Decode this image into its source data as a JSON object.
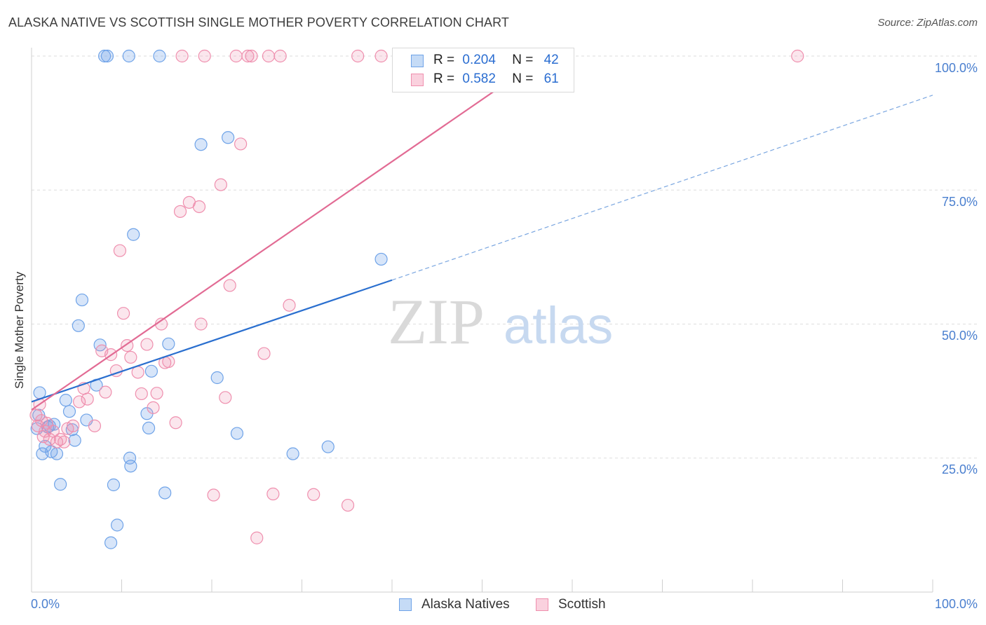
{
  "title": "ALASKA NATIVE VS SCOTTISH SINGLE MOTHER POVERTY CORRELATION CHART",
  "source": "Source: ZipAtlas.com",
  "watermark": {
    "zip": "ZIP",
    "atlas": "atlas"
  },
  "legend": {
    "r_label": "R =",
    "n_label": "N =",
    "rows": [
      {
        "r": "0.204",
        "n": "42",
        "color": "#6fa3e8"
      },
      {
        "r": "0.582",
        "n": "61",
        "color": "#ef8fae"
      }
    ]
  },
  "bottom_legend": [
    "Alaska Natives",
    "Scottish"
  ],
  "chart_data": {
    "type": "scatter",
    "title": "ALASKA NATIVE VS SCOTTISH SINGLE MOTHER POVERTY CORRELATION CHART",
    "xlabel": "",
    "ylabel": "Single Mother Poverty",
    "xlim": [
      0,
      100
    ],
    "ylim": [
      0,
      100
    ],
    "x_tick_labels": [
      "0.0%",
      "100.0%"
    ],
    "y_tick_labels": [
      "25.0%",
      "50.0%",
      "75.0%",
      "100.0%"
    ],
    "y_ticks": [
      25,
      50,
      75,
      100
    ],
    "grid": true,
    "series": [
      {
        "name": "Alaska Natives",
        "color": "#6fa3e8",
        "r": 0.204,
        "n": 42,
        "trend": {
          "x": [
            0,
            40
          ],
          "y": [
            35.5,
            58.2
          ],
          "dashed_to": [
            100,
            92.7
          ]
        },
        "points": [
          [
            0.6,
            30.5
          ],
          [
            0.8,
            33
          ],
          [
            0.9,
            37.2
          ],
          [
            1.2,
            25.8
          ],
          [
            1.5,
            27.2
          ],
          [
            1.8,
            30.8
          ],
          [
            2.0,
            31
          ],
          [
            2.2,
            26.2
          ],
          [
            2.5,
            31.3
          ],
          [
            2.8,
            25.8
          ],
          [
            3.2,
            20.1
          ],
          [
            3.8,
            35.8
          ],
          [
            4.2,
            33.7
          ],
          [
            4.5,
            30.3
          ],
          [
            4.8,
            28.3
          ],
          [
            5.2,
            49.7
          ],
          [
            5.6,
            54.5
          ],
          [
            6.1,
            32.1
          ],
          [
            7.2,
            38.6
          ],
          [
            7.6,
            46.1
          ],
          [
            8.1,
            100
          ],
          [
            8.4,
            100
          ],
          [
            8.8,
            9.2
          ],
          [
            9.1,
            20
          ],
          [
            9.5,
            12.5
          ],
          [
            10.8,
            100
          ],
          [
            10.9,
            25
          ],
          [
            11.0,
            23.5
          ],
          [
            11.3,
            66.7
          ],
          [
            12.8,
            33.3
          ],
          [
            13.0,
            30.6
          ],
          [
            13.3,
            41.2
          ],
          [
            14.2,
            100
          ],
          [
            14.8,
            18.5
          ],
          [
            15.2,
            46.3
          ],
          [
            18.8,
            83.5
          ],
          [
            20.6,
            40
          ],
          [
            21.8,
            84.8
          ],
          [
            22.8,
            29.6
          ],
          [
            29,
            25.8
          ],
          [
            32.9,
            27.1
          ],
          [
            38.8,
            62.1
          ]
        ]
      },
      {
        "name": "Scottish",
        "color": "#ef8fae",
        "r": 0.582,
        "n": 61,
        "trend": {
          "x": [
            0,
            57
          ],
          "y": [
            34,
            100
          ]
        },
        "points": [
          [
            0.5,
            33
          ],
          [
            0.7,
            31
          ],
          [
            0.9,
            35
          ],
          [
            1.1,
            32
          ],
          [
            1.3,
            29
          ],
          [
            1.5,
            30
          ],
          [
            1.7,
            31.5
          ],
          [
            2.0,
            28.5
          ],
          [
            2.4,
            30
          ],
          [
            2.8,
            28
          ],
          [
            3.2,
            28.5
          ],
          [
            3.6,
            28
          ],
          [
            4.0,
            30.5
          ],
          [
            4.6,
            31
          ],
          [
            5.3,
            35.5
          ],
          [
            5.8,
            38
          ],
          [
            6.2,
            36
          ],
          [
            7.0,
            31
          ],
          [
            7.8,
            45
          ],
          [
            8.2,
            37.3
          ],
          [
            8.8,
            44.3
          ],
          [
            9.4,
            41.3
          ],
          [
            9.8,
            63.7
          ],
          [
            10.2,
            52
          ],
          [
            10.6,
            46
          ],
          [
            11.0,
            43.8
          ],
          [
            11.8,
            41
          ],
          [
            12.2,
            37
          ],
          [
            12.8,
            46.2
          ],
          [
            13.5,
            34.4
          ],
          [
            13.9,
            37.1
          ],
          [
            14.4,
            50
          ],
          [
            14.8,
            42.8
          ],
          [
            15.2,
            43
          ],
          [
            16.0,
            31.6
          ],
          [
            16.5,
            71
          ],
          [
            16.7,
            100
          ],
          [
            17.5,
            72.7
          ],
          [
            18.6,
            71.9
          ],
          [
            18.8,
            50
          ],
          [
            19.2,
            100
          ],
          [
            20.2,
            18.1
          ],
          [
            21.0,
            76
          ],
          [
            21.5,
            36.3
          ],
          [
            22.0,
            57.2
          ],
          [
            22.7,
            100
          ],
          [
            23.2,
            83.6
          ],
          [
            24.0,
            100
          ],
          [
            24.4,
            100
          ],
          [
            25.0,
            10.1
          ],
          [
            25.8,
            44.5
          ],
          [
            26.3,
            100
          ],
          [
            26.8,
            18.3
          ],
          [
            27.6,
            100
          ],
          [
            28.6,
            53.5
          ],
          [
            31.3,
            18.2
          ],
          [
            35.1,
            16.2
          ],
          [
            36.2,
            100
          ],
          [
            38.8,
            100
          ],
          [
            41.0,
            100
          ],
          [
            85.0,
            100
          ]
        ]
      }
    ]
  }
}
